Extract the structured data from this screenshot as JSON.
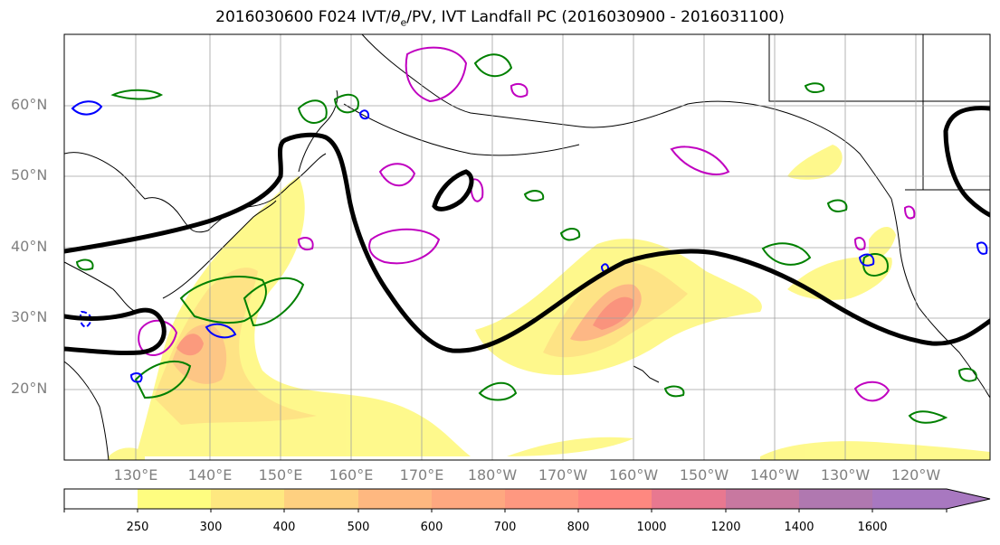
{
  "title": {
    "prefix": "2016030600 F024 IVT/",
    "theta_symbol": "θ",
    "theta_sub": "e",
    "suffix": "/PV, IVT Landfall PC (2016030900 - 2016031100)"
  },
  "lat_labels": [
    "60°N",
    "50°N",
    "40°N",
    "30°N",
    "20°N"
  ],
  "lon_labels": [
    "130°E",
    "140°E",
    "150°E",
    "160°E",
    "170°E",
    "180°W",
    "170°W",
    "160°W",
    "150°W",
    "140°W",
    "130°W",
    "120°W"
  ],
  "colorbar": {
    "ticks": [
      "250",
      "300",
      "400",
      "500",
      "600",
      "700",
      "800",
      "1000",
      "1200",
      "1400",
      "1600"
    ],
    "colors": [
      "#ffffff",
      "#fefd80",
      "#fee880",
      "#fed080",
      "#feb880",
      "#fea880",
      "#fe9880",
      "#fe8880",
      "#e87890",
      "#c878a0",
      "#a878c0"
    ]
  },
  "map_colors": {
    "ivt_fill": "#fef080",
    "pv_positive": "#008000",
    "pv_negative": "#0000ff",
    "theta_e": "#c000c0",
    "pc_contour": "#000000"
  }
}
